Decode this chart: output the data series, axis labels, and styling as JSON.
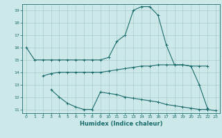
{
  "xlabel": "Humidex (Indice chaleur)",
  "bg_color": "#cce8e8",
  "grid_color": "#aacccc",
  "line_color": "#1a6b6b",
  "xlim": [
    -0.5,
    23.5
  ],
  "ylim": [
    10.7,
    19.5
  ],
  "yticks": [
    11,
    12,
    13,
    14,
    15,
    16,
    17,
    18,
    19
  ],
  "xticks": [
    0,
    1,
    2,
    3,
    4,
    5,
    6,
    7,
    8,
    9,
    10,
    11,
    12,
    13,
    14,
    15,
    16,
    17,
    18,
    19,
    20,
    21,
    22,
    23
  ],
  "line1_x": [
    0,
    1,
    2,
    3,
    4,
    5,
    6,
    7,
    8,
    9,
    10,
    11,
    12,
    13,
    14,
    15,
    16,
    17,
    18,
    19,
    20,
    21,
    22
  ],
  "line1_y": [
    16,
    15,
    15,
    15,
    15,
    15,
    15,
    15,
    15,
    15,
    15.2,
    16.5,
    17.0,
    19.0,
    19.3,
    19.3,
    18.6,
    16.2,
    14.6,
    14.6,
    14.5,
    13.0,
    11.1
  ],
  "line2_x": [
    2,
    3,
    4,
    5,
    6,
    7,
    8,
    9,
    10,
    11,
    12,
    13,
    14,
    15,
    16,
    17,
    18,
    19,
    20,
    21,
    22
  ],
  "line2_y": [
    13.7,
    13.9,
    14.0,
    14.0,
    14.0,
    14.0,
    14.0,
    14.0,
    14.1,
    14.2,
    14.3,
    14.4,
    14.5,
    14.5,
    14.6,
    14.6,
    14.6,
    14.6,
    14.5,
    14.5,
    14.5
  ],
  "line3_x": [
    3,
    4,
    5,
    6,
    7,
    8,
    9,
    10,
    11,
    12,
    13,
    14,
    15,
    16,
    17,
    18,
    19,
    20,
    21,
    22,
    23
  ],
  "line3_y": [
    12.6,
    12.0,
    11.5,
    11.2,
    11.0,
    11.0,
    12.4,
    12.3,
    12.2,
    12.0,
    11.9,
    11.8,
    11.7,
    11.6,
    11.4,
    11.3,
    11.2,
    11.1,
    11.0,
    11.0,
    10.9
  ]
}
